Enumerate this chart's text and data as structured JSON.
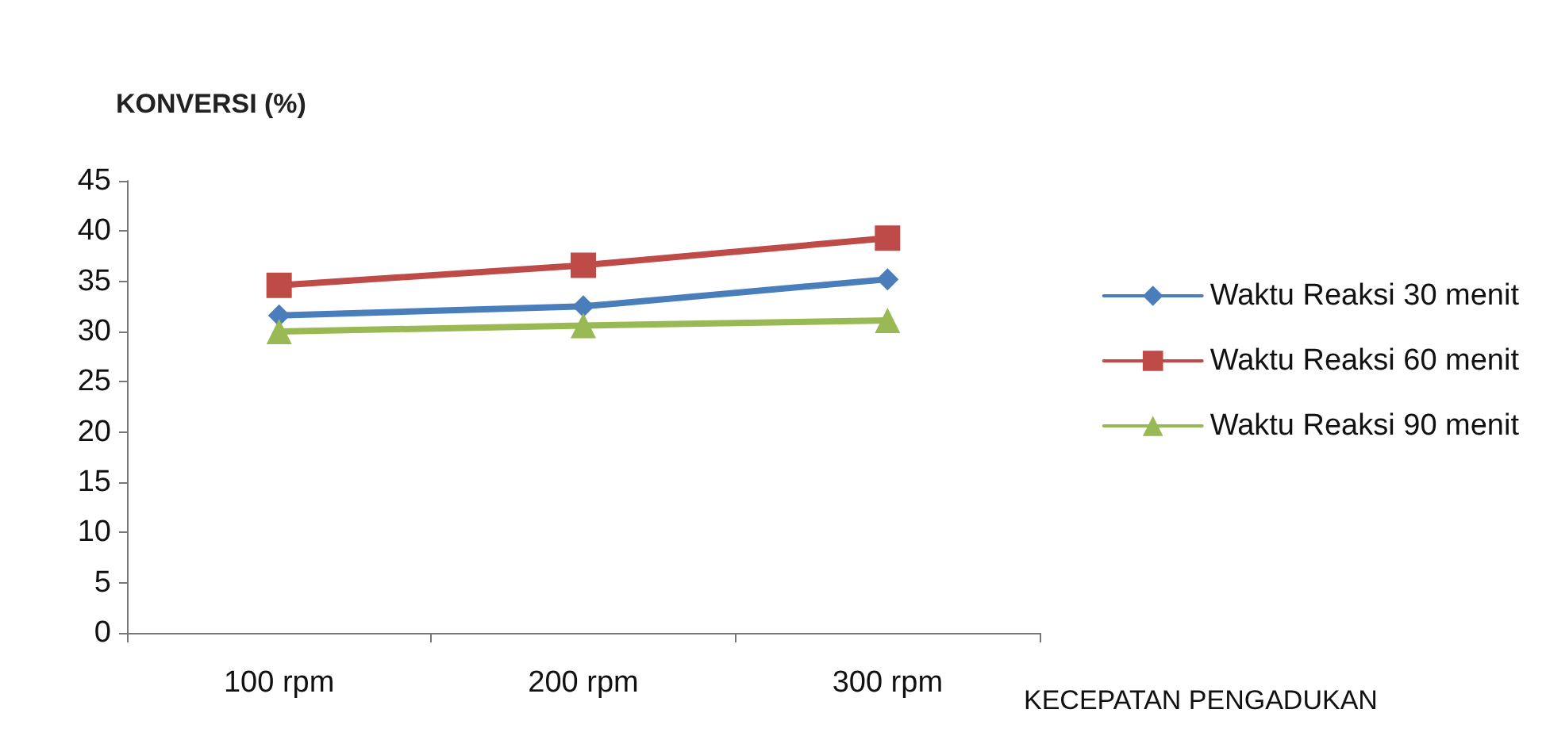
{
  "chart_data": {
    "type": "line",
    "xlabel": "KECEPATAN PENGADUKAN",
    "ylabel": "KONVERSI (%)",
    "categories": [
      "100 rpm",
      "200 rpm",
      "300 rpm"
    ],
    "series": [
      {
        "name": "Waktu Reaksi 30 menit",
        "color": "#4a7ebb",
        "marker": "diamond",
        "values": [
          31.6,
          32.5,
          35.2
        ]
      },
      {
        "name": "Waktu Reaksi 60 menit",
        "color": "#be4b48",
        "marker": "square",
        "values": [
          34.6,
          36.6,
          39.3
        ]
      },
      {
        "name": "Waktu Reaksi 90 menit",
        "color": "#98b954",
        "marker": "triangle",
        "values": [
          30.0,
          30.6,
          31.1
        ]
      }
    ],
    "ylim": [
      0,
      45
    ],
    "yticks": [
      0,
      5,
      10,
      15,
      20,
      25,
      30,
      35,
      40,
      45
    ],
    "grid": false,
    "legend": "right",
    "line_style": "solid"
  }
}
